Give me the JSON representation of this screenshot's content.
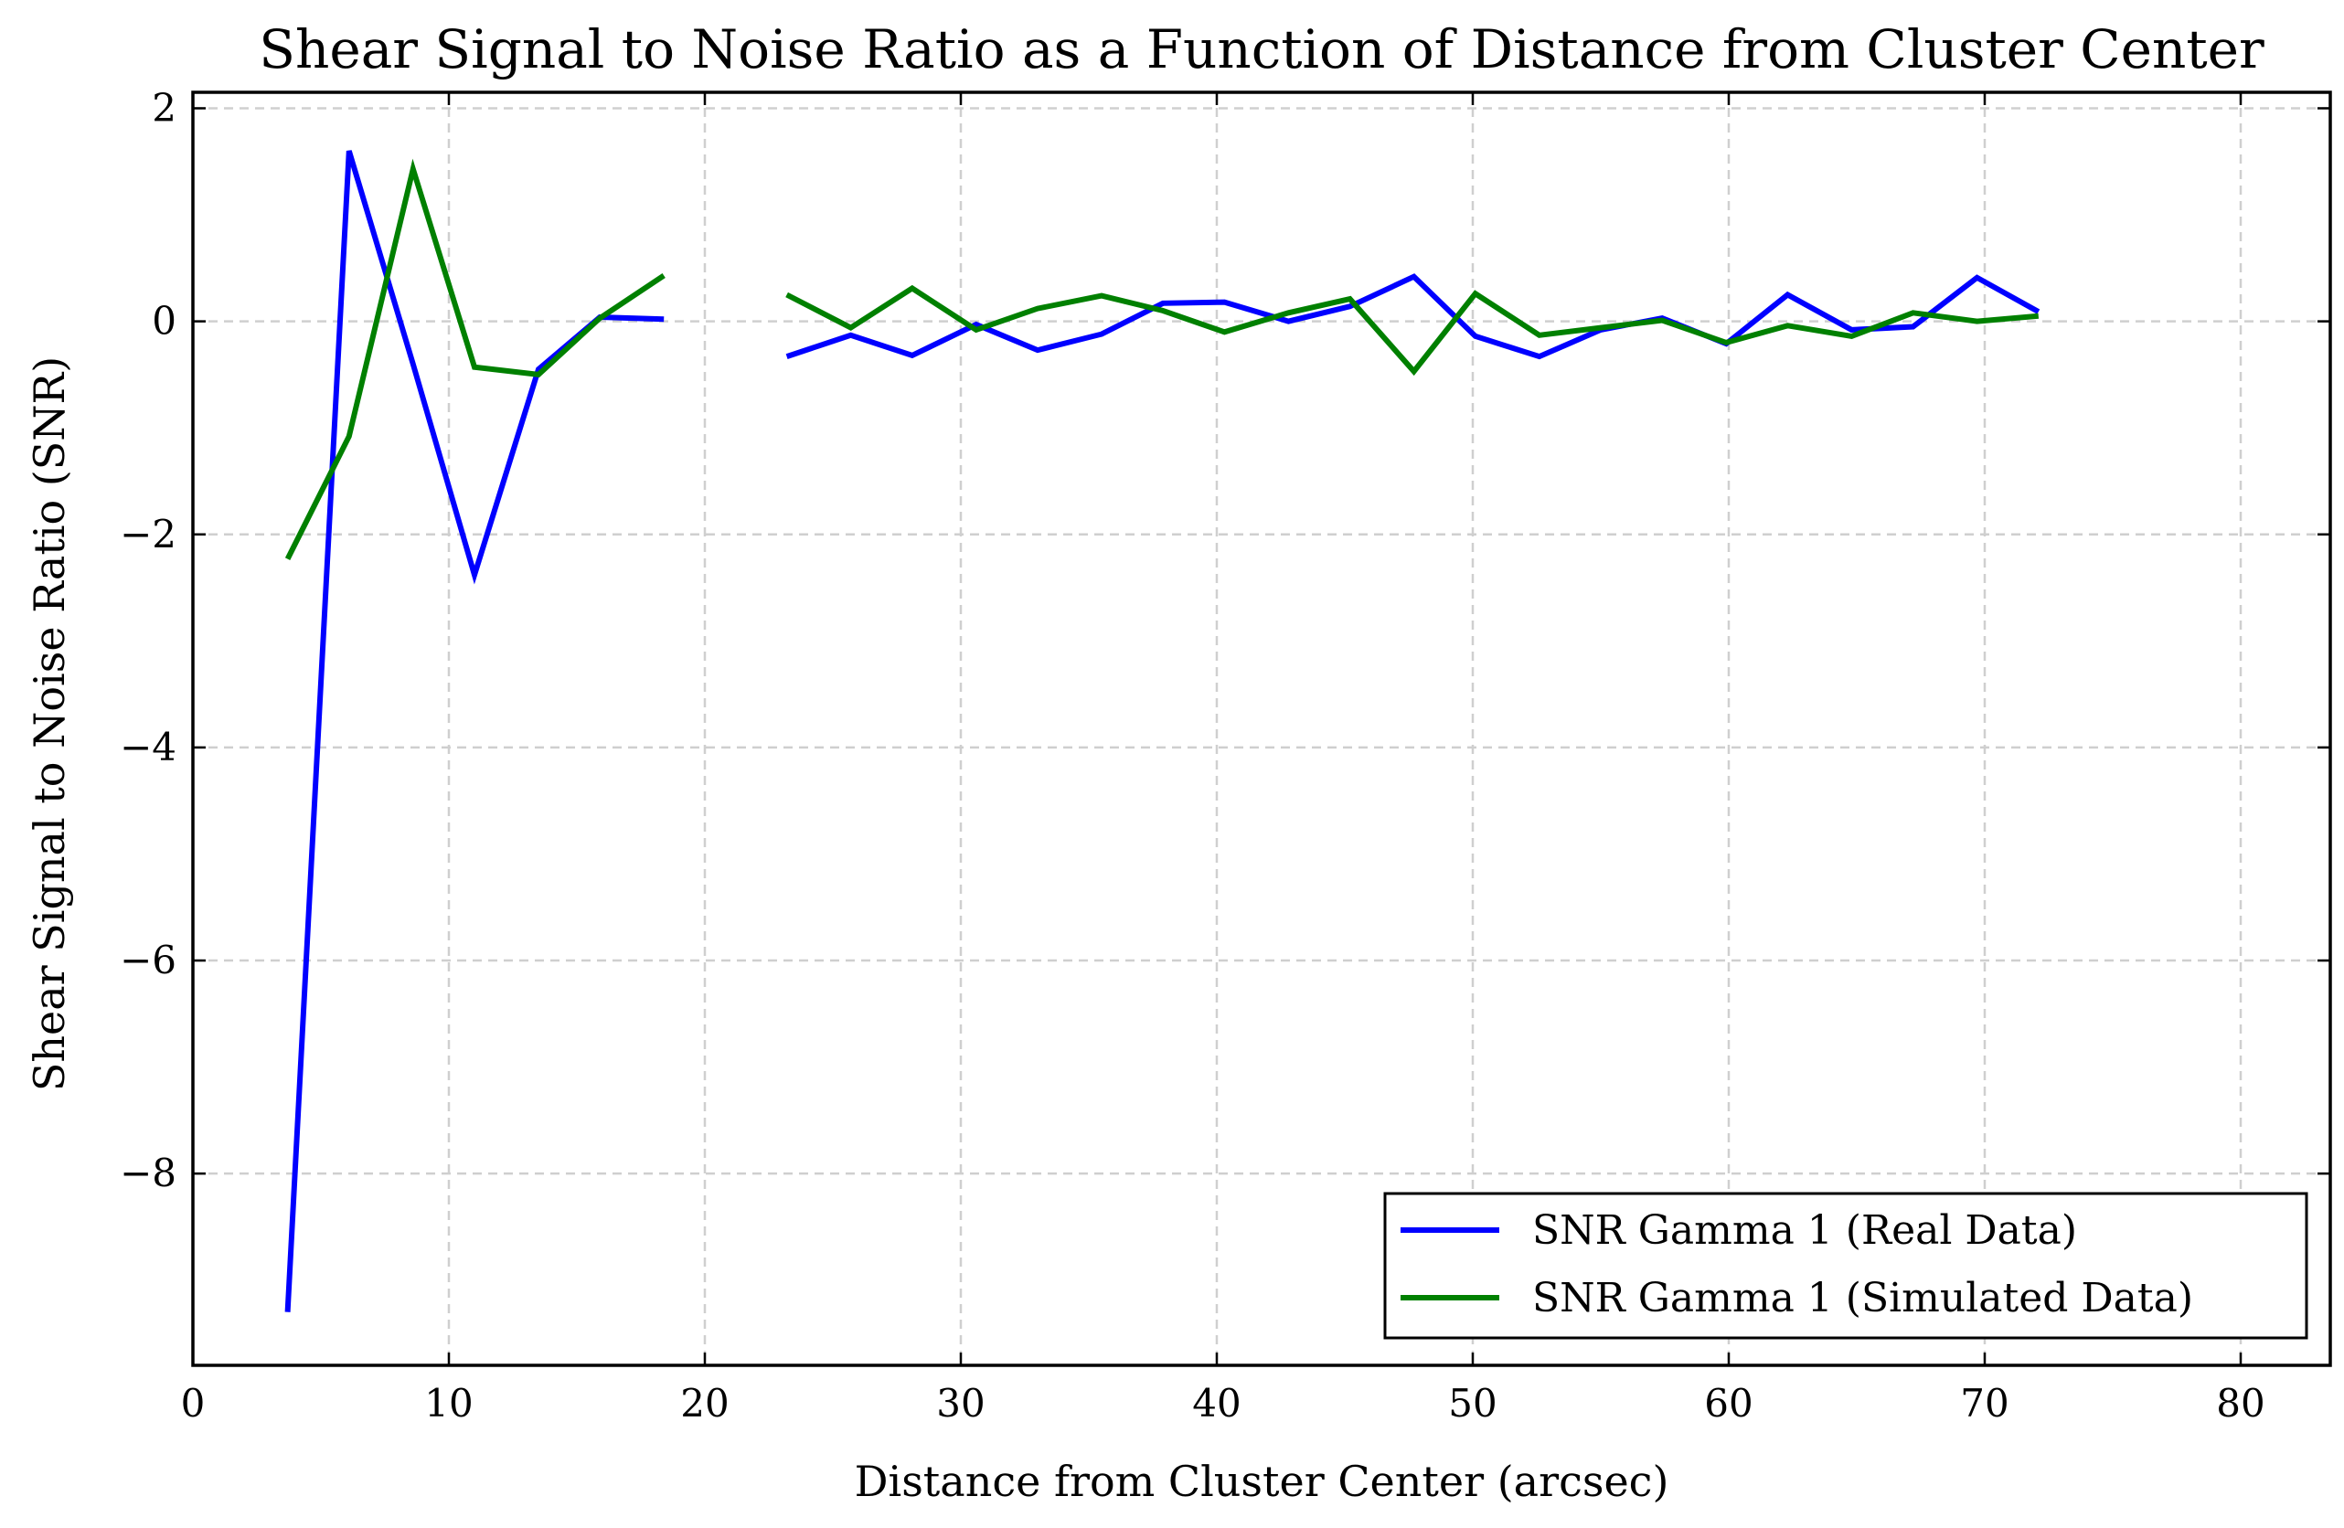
{
  "chart_data": {
    "type": "line",
    "title": "Shear Signal to Noise Ratio as a Function of Distance from Cluster Center",
    "xlabel": "Distance from Cluster Center (arcsec)",
    "ylabel": "Shear Signal to Noise Ratio (SNR)",
    "xlim": [
      0,
      83.5
    ],
    "ylim": [
      -9.8,
      2.15
    ],
    "xticks": [
      0,
      10,
      20,
      30,
      40,
      50,
      60,
      70,
      80
    ],
    "yticks": [
      2,
      0,
      -2,
      -4,
      -6,
      -8
    ],
    "xtick_labels": [
      "0",
      "10",
      "20",
      "30",
      "40",
      "50",
      "60",
      "70",
      "80"
    ],
    "ytick_labels": [
      "2",
      "0",
      "−2",
      "−4",
      "−6",
      "−8"
    ],
    "grid": true,
    "legend_position": "lower-right",
    "x": [
      3.7,
      6.1,
      8.6,
      11.0,
      13.5,
      15.9,
      18.4,
      20.8,
      23.2,
      25.7,
      28.1,
      30.6,
      33.0,
      35.5,
      37.9,
      40.3,
      42.8,
      45.2,
      47.7,
      50.1,
      52.6,
      55.0,
      57.4,
      59.9,
      62.3,
      64.8,
      67.2,
      69.7,
      72.1
    ],
    "series": [
      {
        "name": "SNR Gamma 1 (Real Data)",
        "color": "#0000ff",
        "values": [
          -9.3,
          1.6,
          -0.4,
          -2.38,
          -0.45,
          0.04,
          0.02,
          null,
          -0.33,
          -0.13,
          -0.32,
          -0.03,
          -0.27,
          -0.12,
          0.17,
          0.18,
          0.0,
          0.14,
          0.42,
          -0.14,
          -0.33,
          -0.08,
          0.03,
          -0.21,
          0.25,
          -0.08,
          -0.05,
          0.41,
          0.09
        ]
      },
      {
        "name": "SNR Gamma 1 (Simulated Data)",
        "color": "#008000",
        "values": [
          -2.23,
          -1.08,
          1.43,
          -0.43,
          -0.5,
          0.03,
          0.43,
          null,
          0.25,
          -0.06,
          0.31,
          -0.08,
          0.12,
          0.24,
          0.1,
          -0.1,
          0.08,
          0.21,
          -0.47,
          0.26,
          -0.13,
          -0.06,
          0.01,
          -0.2,
          -0.04,
          -0.14,
          0.08,
          0.0,
          0.05
        ]
      }
    ]
  }
}
